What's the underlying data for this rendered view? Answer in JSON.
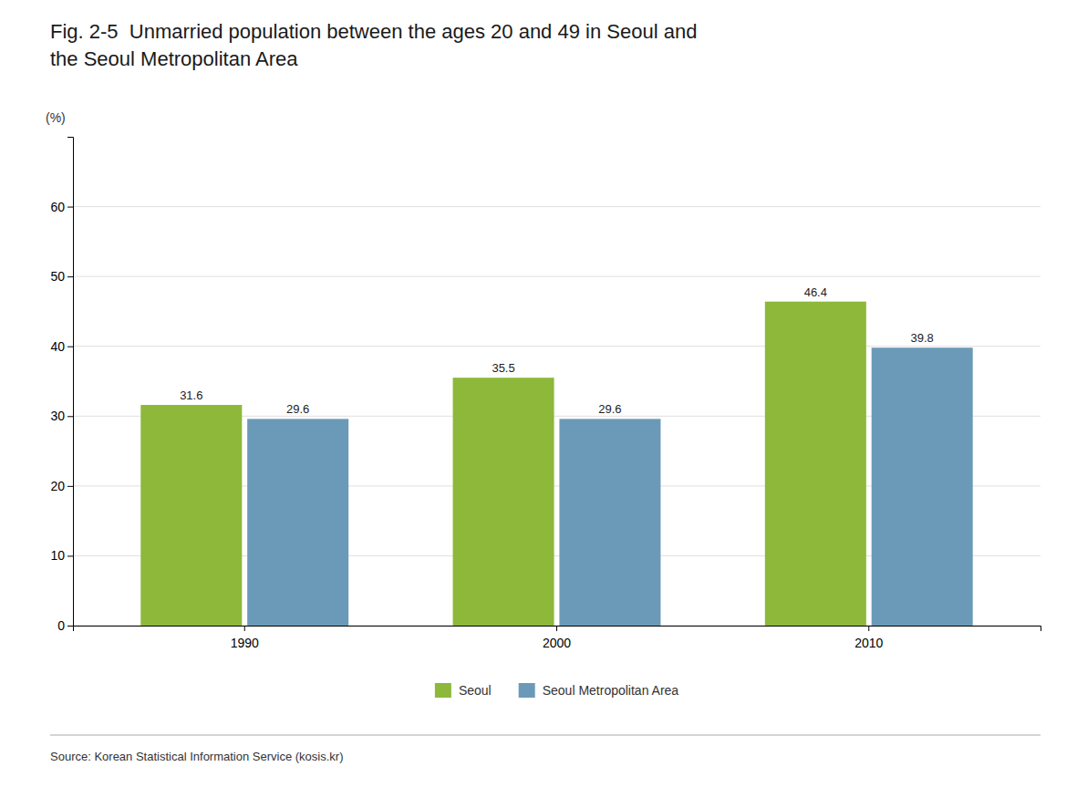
{
  "chart_data": {
    "type": "bar",
    "title": "Fig. 2-5  Unmarried population between the ages 20 and 49 in Seoul and\nthe Seoul Metropolitan Area",
    "ylabel": "(%)",
    "source": "Source: Korean Statistical Information Service (kosis.kr)",
    "categories": [
      "1990",
      "2000",
      "2010"
    ],
    "series": [
      {
        "name": "Seoul",
        "color": "#8DB83A",
        "values": [
          31.6,
          35.5,
          46.4
        ]
      },
      {
        "name": "Seoul Metropolitan Area",
        "color": "#6B9AB8",
        "values": [
          29.6,
          29.6,
          39.8
        ]
      }
    ],
    "ylim": [
      0,
      70
    ],
    "yticks": [
      0,
      10,
      20,
      30,
      40,
      50,
      60
    ],
    "grid": true,
    "data_labels": true,
    "legend": "bottom"
  }
}
